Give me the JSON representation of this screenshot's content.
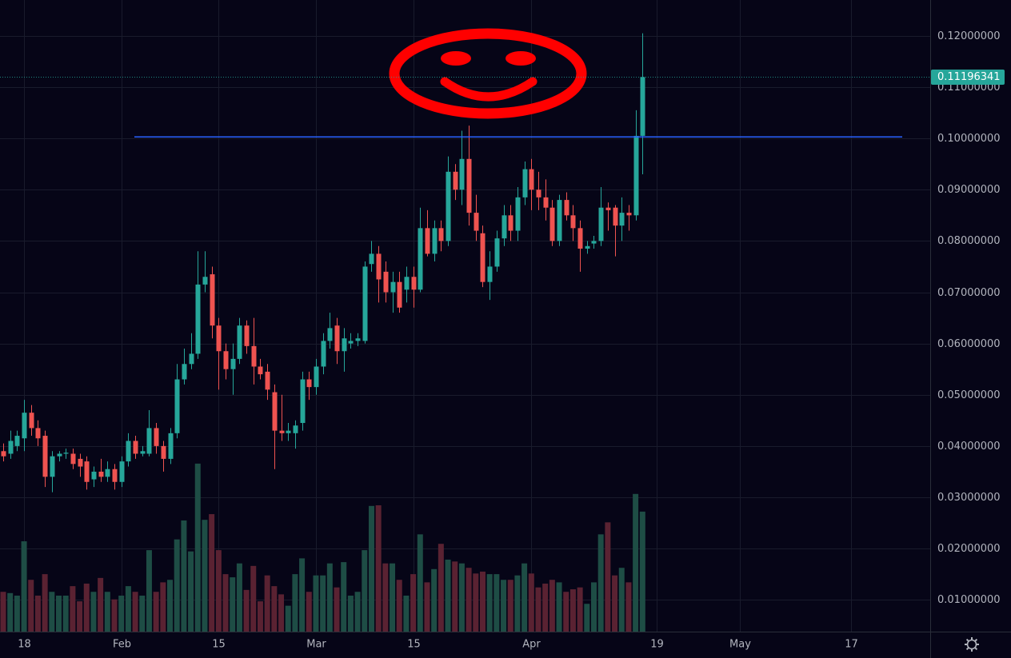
{
  "chart_data": {
    "type": "candlestick",
    "open": [
      0.039,
      0.0385,
      0.04,
      0.0415,
      0.0465,
      0.0435,
      0.042,
      0.034,
      0.038,
      0.0385,
      0.0385,
      0.0375,
      0.037,
      0.0335,
      0.035,
      0.034,
      0.0355,
      0.033,
      0.037,
      0.041,
      0.0385,
      0.0385,
      0.0435,
      0.04,
      0.0375,
      0.0425,
      0.053,
      0.056,
      0.058,
      0.0715,
      0.0735,
      0.0635,
      0.0585,
      0.055,
      0.057,
      0.0635,
      0.0595,
      0.0555,
      0.0545,
      0.0505,
      0.043,
      0.0425,
      0.0425,
      0.0445,
      0.053,
      0.0515,
      0.0555,
      0.0605,
      0.0635,
      0.0585,
      0.06,
      0.0605,
      0.0605,
      0.0755,
      0.0775,
      0.074,
      0.07,
      0.072,
      0.0705,
      0.073,
      0.0705,
      0.0825,
      0.0775,
      0.0825,
      0.08,
      0.0935,
      0.09,
      0.096,
      0.0855,
      0.0815,
      0.072,
      0.075,
      0.0805,
      0.085,
      0.082,
      0.0885,
      0.094,
      0.09,
      0.0885,
      0.0865,
      0.08,
      0.088,
      0.085,
      0.0825,
      0.0785,
      0.0795,
      0.08,
      0.0865,
      0.0865,
      0.083,
      0.0855,
      0.085,
      0.1005
    ],
    "high": [
      0.0405,
      0.043,
      0.043,
      0.049,
      0.048,
      0.045,
      0.043,
      0.039,
      0.039,
      0.0395,
      0.0395,
      0.0385,
      0.038,
      0.036,
      0.0375,
      0.037,
      0.0365,
      0.038,
      0.0425,
      0.042,
      0.04,
      0.047,
      0.0445,
      0.041,
      0.0435,
      0.056,
      0.059,
      0.062,
      0.078,
      0.078,
      0.075,
      0.065,
      0.06,
      0.06,
      0.065,
      0.0645,
      0.065,
      0.057,
      0.056,
      0.052,
      0.05,
      0.0445,
      0.045,
      0.0545,
      0.0545,
      0.057,
      0.062,
      0.066,
      0.065,
      0.063,
      0.062,
      0.062,
      0.076,
      0.08,
      0.079,
      0.076,
      0.074,
      0.074,
      0.075,
      0.075,
      0.0865,
      0.086,
      0.084,
      0.084,
      0.0965,
      0.095,
      0.1015,
      0.1025,
      0.089,
      0.083,
      0.078,
      0.082,
      0.087,
      0.087,
      0.0905,
      0.0955,
      0.096,
      0.0935,
      0.092,
      0.088,
      0.089,
      0.0895,
      0.087,
      0.084,
      0.08,
      0.081,
      0.0905,
      0.0875,
      0.087,
      0.0885,
      0.087,
      0.1055,
      0.1205
    ],
    "low": [
      0.037,
      0.0375,
      0.039,
      0.039,
      0.042,
      0.04,
      0.032,
      0.031,
      0.037,
      0.0375,
      0.0355,
      0.034,
      0.0315,
      0.032,
      0.033,
      0.033,
      0.0315,
      0.032,
      0.036,
      0.0375,
      0.038,
      0.038,
      0.0385,
      0.035,
      0.0365,
      0.0415,
      0.052,
      0.055,
      0.057,
      0.07,
      0.061,
      0.051,
      0.053,
      0.05,
      0.056,
      0.058,
      0.052,
      0.053,
      0.049,
      0.0355,
      0.041,
      0.041,
      0.0395,
      0.043,
      0.049,
      0.05,
      0.054,
      0.059,
      0.056,
      0.0545,
      0.059,
      0.0595,
      0.06,
      0.074,
      0.068,
      0.068,
      0.066,
      0.066,
      0.068,
      0.067,
      0.07,
      0.077,
      0.076,
      0.078,
      0.079,
      0.088,
      0.087,
      0.083,
      0.08,
      0.071,
      0.0685,
      0.074,
      0.079,
      0.08,
      0.08,
      0.087,
      0.086,
      0.086,
      0.084,
      0.079,
      0.079,
      0.084,
      0.08,
      0.074,
      0.0775,
      0.0785,
      0.079,
      0.082,
      0.077,
      0.08,
      0.082,
      0.084,
      0.093
    ],
    "close": [
      0.038,
      0.041,
      0.042,
      0.0465,
      0.0435,
      0.0415,
      0.034,
      0.038,
      0.0385,
      0.0387,
      0.0365,
      0.036,
      0.033,
      0.035,
      0.034,
      0.0355,
      0.033,
      0.037,
      0.041,
      0.0385,
      0.039,
      0.0435,
      0.04,
      0.0375,
      0.0425,
      0.053,
      0.056,
      0.058,
      0.0715,
      0.073,
      0.0635,
      0.0585,
      0.055,
      0.057,
      0.0635,
      0.0595,
      0.0555,
      0.054,
      0.051,
      0.043,
      0.0425,
      0.043,
      0.044,
      0.053,
      0.0515,
      0.0555,
      0.0605,
      0.063,
      0.0585,
      0.061,
      0.0605,
      0.061,
      0.075,
      0.0775,
      0.0725,
      0.07,
      0.072,
      0.067,
      0.073,
      0.0705,
      0.0825,
      0.0775,
      0.0825,
      0.08,
      0.0935,
      0.09,
      0.096,
      0.0855,
      0.082,
      0.072,
      0.075,
      0.0805,
      0.085,
      0.082,
      0.0885,
      0.094,
      0.09,
      0.0885,
      0.0865,
      0.08,
      0.088,
      0.085,
      0.0825,
      0.0785,
      0.079,
      0.08,
      0.0865,
      0.086,
      0.083,
      0.0855,
      0.085,
      0.1005,
      0.11196341
    ],
    "volume": [
      6.3,
      6.1,
      5.7,
      14.3,
      8.2,
      5.7,
      9.1,
      6.3,
      5.7,
      5.7,
      7.2,
      4.8,
      7.6,
      6.3,
      8.5,
      6.3,
      5.1,
      5.7,
      7.2,
      6.3,
      5.7,
      12.9,
      6.3,
      7.8,
      8.2,
      14.6,
      17.6,
      12.7,
      26.6,
      17.7,
      18.6,
      12.9,
      9.1,
      8.6,
      10.8,
      6.6,
      10.4,
      4.8,
      8.9,
      7.2,
      5.9,
      4.1,
      9.1,
      11.6,
      6.3,
      8.9,
      8.9,
      10.8,
      7.0,
      11.0,
      5.7,
      6.3,
      12.9,
      19.9,
      20.0,
      10.8,
      10.8,
      8.2,
      5.7,
      9.1,
      15.4,
      7.8,
      9.9,
      13.9,
      11.4,
      11.1,
      10.8,
      10.1,
      9.2,
      9.5,
      9.1,
      9.1,
      8.2,
      8.2,
      8.9,
      10.8,
      9.2,
      7.0,
      7.6,
      8.2,
      7.8,
      6.3,
      6.7,
      7.0,
      4.4,
      7.8,
      15.4,
      17.3,
      8.9,
      10.1,
      7.8,
      21.8,
      19.0
    ],
    "up_color": "#26a69a",
    "down_color": "#ef5350",
    "volume_up_color": "#1e4d45",
    "volume_down_color": "#5a2232",
    "ylim": [
      0.0038,
      0.127
    ],
    "yticks": [
      {
        "value": 0.01,
        "label": "0.01000000"
      },
      {
        "value": 0.02,
        "label": "0.02000000"
      },
      {
        "value": 0.03,
        "label": "0.03000000"
      },
      {
        "value": 0.04,
        "label": "0.04000000"
      },
      {
        "value": 0.05,
        "label": "0.05000000"
      },
      {
        "value": 0.06,
        "label": "0.06000000"
      },
      {
        "value": 0.07,
        "label": "0.07000000"
      },
      {
        "value": 0.08,
        "label": "0.08000000"
      },
      {
        "value": 0.09,
        "label": "0.09000000"
      },
      {
        "value": 0.1,
        "label": "0.10000000"
      },
      {
        "value": 0.11,
        "label": "0.11000000"
      },
      {
        "value": 0.12,
        "label": "0.12000000"
      }
    ],
    "y2lim": [
      0,
      100
    ],
    "xlim": [
      -0.46,
      133.4
    ],
    "xticks": [
      {
        "value": 3,
        "label": "18"
      },
      {
        "value": 17,
        "label": "Feb"
      },
      {
        "value": 31,
        "label": "15"
      },
      {
        "value": 45,
        "label": "Mar"
      },
      {
        "value": 59,
        "label": "15"
      },
      {
        "value": 76,
        "label": "Apr"
      },
      {
        "value": 94,
        "label": "19"
      },
      {
        "value": 106,
        "label": "May"
      },
      {
        "value": 122,
        "label": "17"
      }
    ],
    "hline": {
      "value": 0.1003,
      "color": "#2962ff"
    },
    "grid": true
  }
}
